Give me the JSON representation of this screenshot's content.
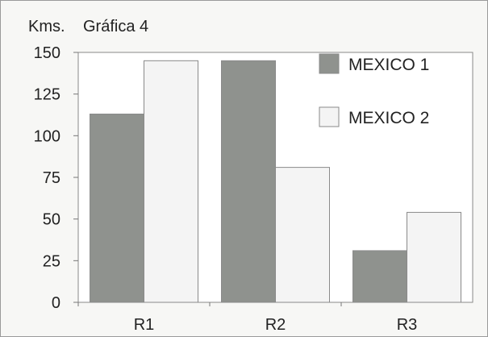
{
  "chart_data": {
    "type": "bar",
    "ylabel": "Kms.",
    "title": "Gráfica 4",
    "categories": [
      "R1",
      "R2",
      "R3"
    ],
    "series": [
      {
        "name": "MEXICO 1",
        "values": [
          113,
          145,
          31
        ],
        "color": "#8f928e"
      },
      {
        "name": "MEXICO 2",
        "values": [
          145,
          81,
          54
        ],
        "color": "#f4f4f4"
      }
    ],
    "yticks": [
      0,
      25,
      50,
      75,
      100,
      125,
      150
    ],
    "ylim": [
      0,
      150
    ],
    "grid": false,
    "legend_position": "top-right"
  }
}
